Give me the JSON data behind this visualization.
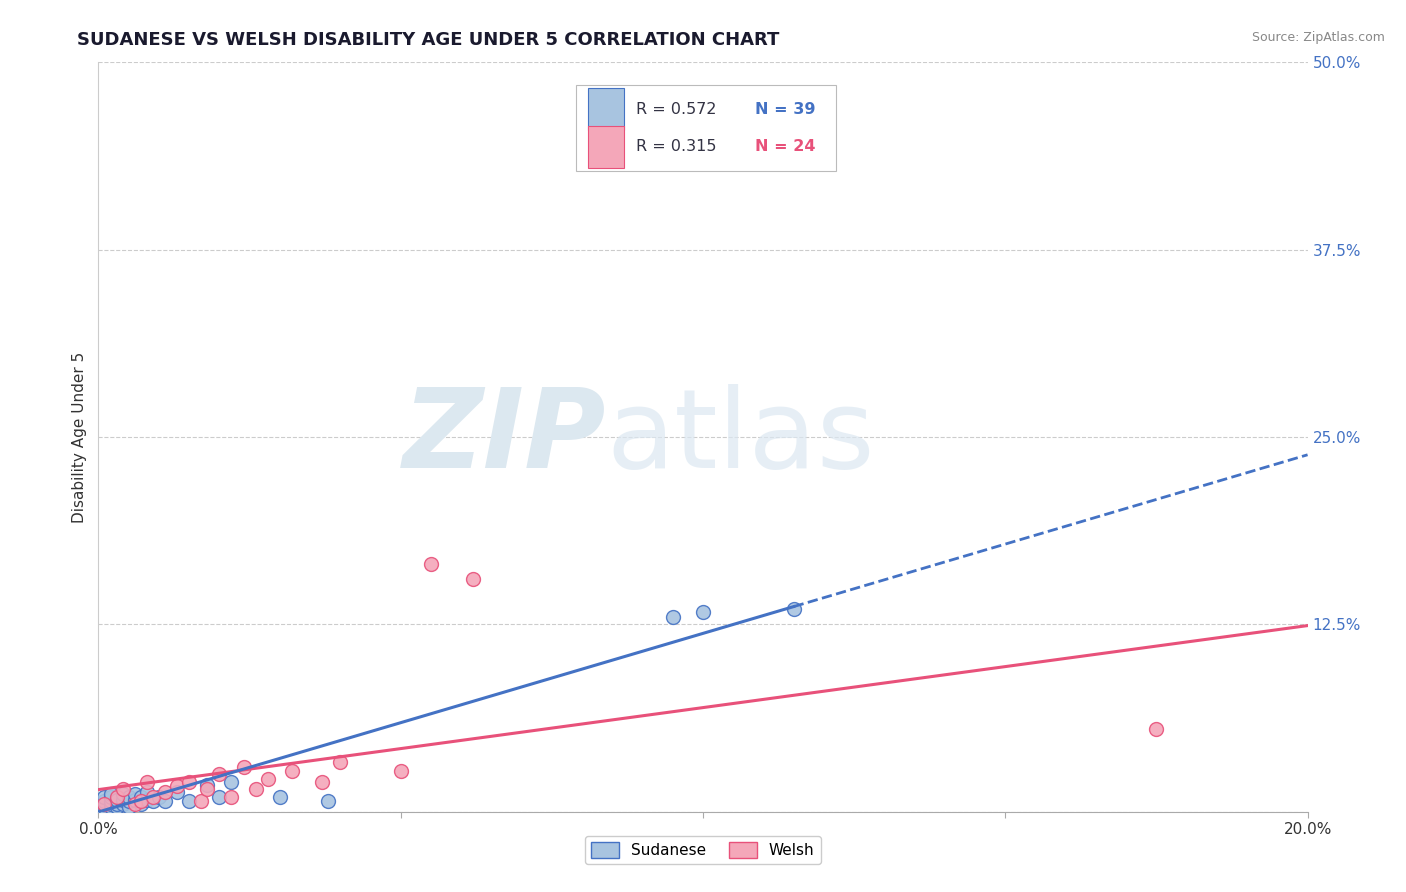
{
  "title": "SUDANESE VS WELSH DISABILITY AGE UNDER 5 CORRELATION CHART",
  "source": "Source: ZipAtlas.com",
  "ylabel": "Disability Age Under 5",
  "xlim": [
    0.0,
    0.2
  ],
  "ylim": [
    0.0,
    0.5
  ],
  "yticks": [
    0.0,
    0.125,
    0.25,
    0.375,
    0.5
  ],
  "ytick_labels": [
    "",
    "12.5%",
    "25.0%",
    "37.5%",
    "50.0%"
  ],
  "xtick_labels": [
    "0.0%",
    "",
    "",
    "",
    "20.0%"
  ],
  "xticks": [
    0.0,
    0.05,
    0.1,
    0.15,
    0.2
  ],
  "grid_color": "#cccccc",
  "background_color": "#ffffff",
  "sudanese_color": "#a8c4e0",
  "welsh_color": "#f4a7b9",
  "sudanese_line_color": "#4472c4",
  "welsh_line_color": "#e8517a",
  "R_sudanese": 0.572,
  "N_sudanese": 39,
  "R_welsh": 0.315,
  "N_welsh": 24,
  "sudanese_scatter_x": [
    0.0,
    0.0,
    0.001,
    0.001,
    0.001,
    0.001,
    0.002,
    0.002,
    0.002,
    0.002,
    0.002,
    0.003,
    0.003,
    0.003,
    0.004,
    0.004,
    0.004,
    0.005,
    0.005,
    0.005,
    0.006,
    0.006,
    0.007,
    0.007,
    0.008,
    0.008,
    0.009,
    0.01,
    0.011,
    0.013,
    0.015,
    0.018,
    0.02,
    0.022,
    0.03,
    0.038,
    0.095,
    0.1,
    0.115
  ],
  "sudanese_scatter_y": [
    0.003,
    0.005,
    0.003,
    0.005,
    0.007,
    0.01,
    0.003,
    0.005,
    0.007,
    0.01,
    0.012,
    0.003,
    0.005,
    0.008,
    0.005,
    0.008,
    0.012,
    0.003,
    0.007,
    0.01,
    0.008,
    0.012,
    0.005,
    0.01,
    0.008,
    0.013,
    0.007,
    0.01,
    0.007,
    0.013,
    0.007,
    0.018,
    0.01,
    0.02,
    0.01,
    0.007,
    0.13,
    0.133,
    0.135
  ],
  "welsh_scatter_x": [
    0.001,
    0.003,
    0.004,
    0.006,
    0.007,
    0.008,
    0.009,
    0.011,
    0.013,
    0.015,
    0.017,
    0.018,
    0.02,
    0.022,
    0.024,
    0.026,
    0.028,
    0.032,
    0.037,
    0.04,
    0.05,
    0.055,
    0.062,
    0.175
  ],
  "welsh_scatter_y": [
    0.005,
    0.01,
    0.015,
    0.005,
    0.007,
    0.02,
    0.01,
    0.013,
    0.017,
    0.02,
    0.007,
    0.015,
    0.025,
    0.01,
    0.03,
    0.015,
    0.022,
    0.027,
    0.02,
    0.033,
    0.027,
    0.165,
    0.155,
    0.055
  ],
  "watermark_zip": "ZIP",
  "watermark_atlas": "atlas",
  "watermark_color": "#dce8f0",
  "marker_size": 100,
  "title_fontsize": 13,
  "axis_label_fontsize": 11,
  "tick_fontsize": 11,
  "legend_label_color": "#333344",
  "legend_value_color": "#4472c4",
  "legend_welsh_value_color": "#e8517a"
}
